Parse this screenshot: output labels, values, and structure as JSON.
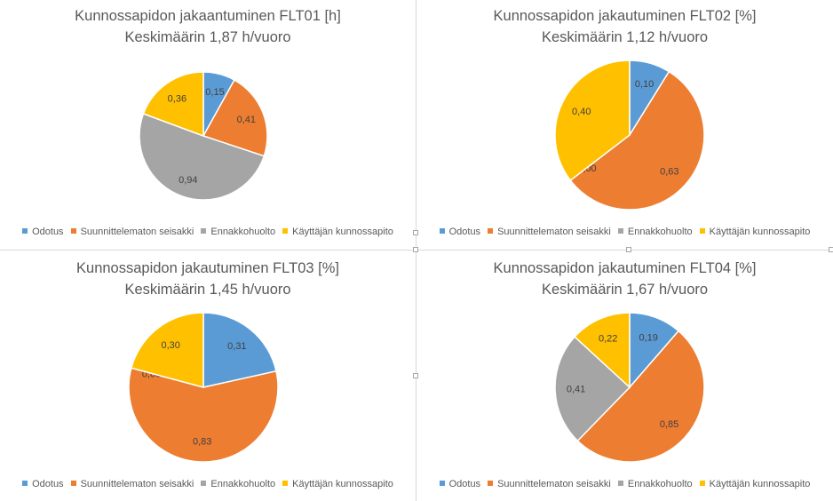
{
  "legend_labels": [
    "Odotus",
    "Suunnittelematon seisakki",
    "Ennakkohuolto",
    "Käyttäjän kunnossapito"
  ],
  "colors": [
    "#5B9BD5",
    "#ED7D31",
    "#A5A5A5",
    "#FFC000"
  ],
  "chart_data": [
    {
      "type": "pie",
      "title": "Kunnossapidon jakaantuminen FLT01 [h]",
      "subtitle": "Keskimäärin 1,87 h/vuoro",
      "categories": [
        "Odotus",
        "Suunnittelematon seisakki",
        "Ennakkohuolto",
        "Käyttäjän kunnossapito"
      ],
      "values": [
        0.15,
        0.41,
        0.94,
        0.36
      ],
      "data_labels": [
        "0,15",
        "0,41",
        "0,94",
        "0,36"
      ],
      "legend": "bottom"
    },
    {
      "type": "pie",
      "title": "Kunnossapidon jakautuminen FLT02 [%]",
      "subtitle": "Keskimäärin 1,12 h/vuoro",
      "categories": [
        "Odotus",
        "Suunnittelematon seisakki",
        "Ennakkohuolto",
        "Käyttäjän kunnossapito"
      ],
      "values": [
        0.1,
        0.63,
        0.0,
        0.4
      ],
      "data_labels": [
        "0,10",
        "0,63",
        "0,00",
        "0,40"
      ],
      "legend": "bottom"
    },
    {
      "type": "pie",
      "title": "Kunnossapidon jakautuminen FLT03 [%]",
      "subtitle": "Keskimäärin 1,45 h/vuoro",
      "categories": [
        "Odotus",
        "Suunnittelematon seisakki",
        "Ennakkohuolto",
        "Käyttäjän kunnossapito"
      ],
      "values": [
        0.31,
        0.83,
        0.0,
        0.3
      ],
      "data_labels": [
        "0,31",
        "0,83",
        "0,00",
        "0,30"
      ],
      "legend": "bottom"
    },
    {
      "type": "pie",
      "title": "Kunnossapidon jakautuminen FLT04 [%]",
      "subtitle": "Keskimäärin 1,67 h/vuoro",
      "categories": [
        "Odotus",
        "Suunnittelematon seisakki",
        "Ennakkohuolto",
        "Käyttäjän kunnossapito"
      ],
      "values": [
        0.19,
        0.85,
        0.41,
        0.22
      ],
      "data_labels": [
        "0,19",
        "0,85",
        "0,41",
        "0,22"
      ],
      "legend": "bottom"
    }
  ]
}
